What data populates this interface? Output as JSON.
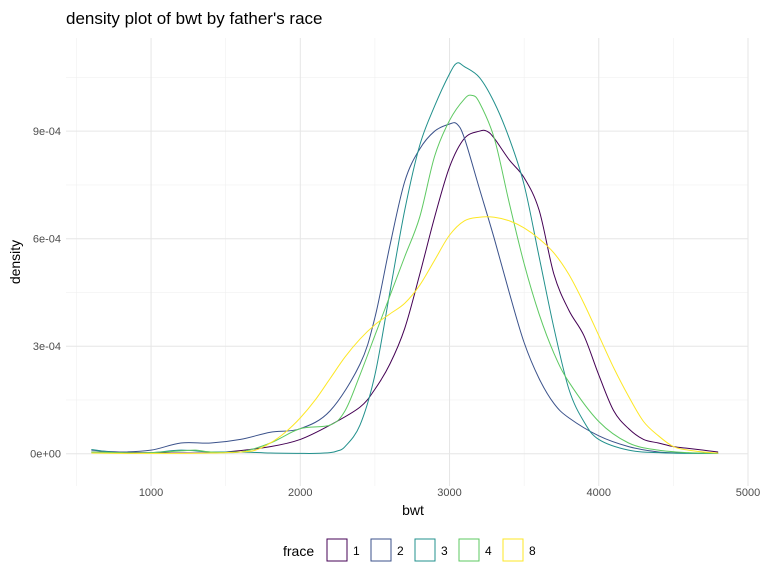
{
  "chart_data": {
    "type": "line",
    "title": "density plot of bwt by father's race",
    "xlabel": "bwt",
    "ylabel": "density",
    "xlim": [
      430,
      5000
    ],
    "ylim": [
      -9e-05,
      0.00116
    ],
    "xticks": [
      1000,
      2000,
      3000,
      4000,
      5000
    ],
    "yticks": [
      0,
      0.0003,
      0.0006,
      0.0009
    ],
    "ytick_labels": [
      "0e+00",
      "3e-04",
      "6e-04",
      "9e-04"
    ],
    "grid": true,
    "legend": {
      "title": "frace",
      "position": "bottom"
    },
    "series": [
      {
        "name": "1",
        "color": "#440154",
        "x": [
          600,
          900,
          1200,
          1500,
          1800,
          2000,
          2200,
          2400,
          2500,
          2600,
          2700,
          2800,
          2900,
          3000,
          3100,
          3200,
          3250,
          3300,
          3400,
          3500,
          3600,
          3700,
          3800,
          3900,
          4000,
          4100,
          4200,
          4300,
          4400,
          4500,
          4600,
          4700,
          4800
        ],
        "y": [
          5e-06,
          3e-06,
          2e-06,
          5e-06,
          2e-05,
          4e-05,
          8e-05,
          0.00013,
          0.00018,
          0.00025,
          0.00035,
          0.0005,
          0.00066,
          0.0008,
          0.00088,
          0.0009,
          0.0009,
          0.00088,
          0.00082,
          0.00077,
          0.00068,
          0.0005,
          0.0004,
          0.00033,
          0.00022,
          0.00012,
          7e-05,
          4e-05,
          3e-05,
          2e-05,
          1.5e-05,
          1e-05,
          5e-06
        ]
      },
      {
        "name": "2",
        "color": "#3b528b",
        "x": [
          600,
          800,
          1000,
          1200,
          1400,
          1600,
          1800,
          2000,
          2200,
          2400,
          2500,
          2600,
          2700,
          2800,
          2900,
          3000,
          3050,
          3100,
          3200,
          3300,
          3400,
          3500,
          3600,
          3700,
          3800,
          4000,
          4200,
          4400,
          4600,
          4800
        ],
        "y": [
          1e-05,
          5e-06,
          1e-05,
          3e-05,
          3e-05,
          4e-05,
          6e-05,
          7e-05,
          0.00012,
          0.00025,
          0.00038,
          0.00058,
          0.00076,
          0.00085,
          0.0009,
          0.00092,
          0.00092,
          0.00088,
          0.00074,
          0.0006,
          0.00045,
          0.00031,
          0.00021,
          0.00014,
          0.0001,
          5e-05,
          2e-05,
          5e-06,
          2e-06,
          2e-06
        ]
      },
      {
        "name": "3",
        "color": "#21908c",
        "x": [
          600,
          800,
          1000,
          1200,
          1400,
          1600,
          1800,
          2000,
          2100,
          2200,
          2250,
          2300,
          2400,
          2500,
          2600,
          2700,
          2800,
          2900,
          3000,
          3050,
          3100,
          3200,
          3300,
          3400,
          3500,
          3600,
          3700,
          3800,
          3900,
          4000,
          4200,
          4400,
          4600,
          4800
        ],
        "y": [
          1.2e-05,
          2e-06,
          3e-06,
          1e-05,
          5e-06,
          5e-06,
          2e-06,
          1e-06,
          1e-06,
          3e-06,
          8e-06,
          2e-05,
          8e-05,
          0.00022,
          0.00045,
          0.00068,
          0.00086,
          0.00097,
          0.00106,
          0.00109,
          0.00108,
          0.00105,
          0.00098,
          0.00088,
          0.00075,
          0.00055,
          0.00035,
          0.00018,
          9e-05,
          4e-05,
          1e-05,
          3e-06,
          1e-06,
          1e-06
        ]
      },
      {
        "name": "4",
        "color": "#5ec962",
        "x": [
          600,
          800,
          1000,
          1200,
          1300,
          1400,
          1600,
          1800,
          2000,
          2200,
          2300,
          2400,
          2500,
          2600,
          2700,
          2800,
          2900,
          3000,
          3100,
          3150,
          3200,
          3300,
          3400,
          3500,
          3600,
          3700,
          3800,
          4000,
          4200,
          4400,
          4600,
          4800
        ],
        "y": [
          5e-06,
          3e-06,
          3e-06,
          8e-06,
          1e-05,
          5e-06,
          5e-06,
          3e-05,
          7e-05,
          8e-05,
          0.00012,
          0.00022,
          0.00033,
          0.00044,
          0.00055,
          0.00066,
          0.00083,
          0.00093,
          0.00099,
          0.001,
          0.00098,
          0.00088,
          0.0007,
          0.00053,
          0.00039,
          0.00028,
          0.0002,
          9e-05,
          3e-05,
          1e-05,
          3e-06,
          1e-06
        ]
      },
      {
        "name": "8",
        "color": "#fde725",
        "x": [
          600,
          800,
          1000,
          1200,
          1400,
          1600,
          1700,
          1800,
          1900,
          2000,
          2100,
          2200,
          2300,
          2400,
          2500,
          2600,
          2700,
          2800,
          2900,
          3000,
          3100,
          3200,
          3300,
          3400,
          3500,
          3600,
          3700,
          3800,
          3900,
          4000,
          4100,
          4200,
          4300,
          4400,
          4500,
          4600,
          4700,
          4800
        ],
        "y": [
          2e-06,
          1e-06,
          1e-06,
          1e-06,
          2e-06,
          5e-06,
          1e-05,
          3e-05,
          6e-05,
          0.0001,
          0.00015,
          0.00021,
          0.00027,
          0.00032,
          0.00036,
          0.00039,
          0.00042,
          0.00047,
          0.00054,
          0.00061,
          0.00065,
          0.00066,
          0.00066,
          0.00065,
          0.00063,
          0.0006,
          0.00056,
          0.0005,
          0.00042,
          0.00033,
          0.00024,
          0.00016,
          9e-05,
          5e-05,
          2e-05,
          1e-05,
          5e-06,
          2e-06
        ]
      }
    ]
  }
}
